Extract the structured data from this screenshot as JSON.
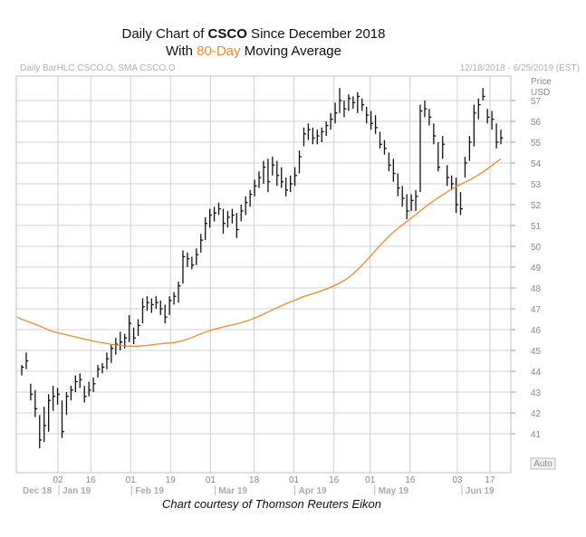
{
  "title": {
    "line1_prefix": "Daily Chart of ",
    "line1_ticker": "CSCO",
    "line1_suffix": " Since December 2018",
    "line2_prefix": "With ",
    "line2_highlight": "80-Day",
    "line2_suffix": " Moving Average",
    "highlight_color": "#f08a2b"
  },
  "caption": "Chart courtesy of Thomson Reuters Eikon",
  "chart_data": {
    "type": "line",
    "header_left": "Daily BarHLC CSCO.O, SMA CSCO.O",
    "header_right": "12/18/2018 - 6/25/2019 (EST)",
    "ylabel": "Price",
    "yunit": "USD",
    "auto_label": "Auto",
    "ylim": [
      40,
      58
    ],
    "yticks": [
      41,
      42,
      43,
      44,
      45,
      46,
      47,
      48,
      49,
      50,
      51,
      52,
      53,
      54,
      55,
      56,
      57
    ],
    "day_labels": [
      "02",
      "16",
      "01",
      "19",
      "01",
      "18",
      "01",
      "16",
      "01",
      "16",
      "03",
      "17"
    ],
    "month_labels": [
      "Dec 18",
      "Jan 19",
      "Feb 19",
      "Mar 19",
      "Apr 19",
      "May 19",
      "Jun 19"
    ],
    "grid": true,
    "colors": {
      "bars": "#111111",
      "sma": "#f08a2b",
      "grid": "#d0d0d0"
    },
    "series": [
      {
        "name": "BarHLC CSCO.O",
        "style": "hlc-bars",
        "values": [
          [
            43.8,
            44.3,
            44.2
          ],
          [
            44.1,
            44.9,
            44.5
          ],
          [
            42.6,
            43.4,
            42.9
          ],
          [
            41.8,
            43.1,
            42.2
          ],
          [
            40.3,
            41.9,
            40.7
          ],
          [
            40.6,
            42.3,
            41.4
          ],
          [
            41.1,
            42.9,
            42.6
          ],
          [
            42.1,
            43.3,
            42.8
          ],
          [
            42.4,
            43.2,
            42.9
          ],
          [
            40.8,
            42.6,
            41.1
          ],
          [
            41.9,
            43.0,
            42.8
          ],
          [
            42.6,
            43.3,
            43.1
          ],
          [
            43.0,
            43.8,
            43.5
          ],
          [
            43.2,
            43.9,
            43.6
          ],
          [
            42.5,
            43.3,
            42.8
          ],
          [
            42.8,
            43.5,
            43.1
          ],
          [
            43.0,
            43.7,
            43.4
          ],
          [
            43.7,
            44.3,
            44.1
          ],
          [
            43.9,
            44.4,
            44.2
          ],
          [
            44.1,
            44.9,
            44.6
          ],
          [
            44.4,
            45.3,
            45.1
          ],
          [
            44.8,
            45.6,
            45.3
          ],
          [
            45.0,
            45.9,
            45.4
          ],
          [
            45.1,
            45.8,
            45.6
          ],
          [
            45.4,
            46.7,
            46.3
          ],
          [
            45.3,
            46.1,
            45.6
          ],
          [
            45.7,
            46.5,
            46.2
          ],
          [
            46.3,
            47.5,
            47.1
          ],
          [
            46.9,
            47.6,
            47.3
          ],
          [
            46.8,
            47.5,
            47.2
          ],
          [
            47.0,
            47.6,
            47.3
          ],
          [
            46.7,
            47.4,
            47.0
          ],
          [
            46.3,
            47.2,
            46.6
          ],
          [
            46.7,
            47.6,
            47.4
          ],
          [
            47.2,
            47.8,
            47.6
          ],
          [
            47.3,
            48.3,
            48.1
          ],
          [
            48.2,
            49.8,
            49.5
          ],
          [
            49.0,
            49.7,
            49.4
          ],
          [
            48.9,
            49.5,
            49.1
          ],
          [
            49.1,
            49.9,
            49.6
          ],
          [
            49.7,
            50.6,
            50.3
          ],
          [
            50.3,
            51.4,
            51.1
          ],
          [
            50.9,
            51.8,
            51.5
          ],
          [
            51.2,
            51.9,
            51.6
          ],
          [
            51.5,
            52.1,
            51.8
          ],
          [
            50.6,
            51.8,
            51.1
          ],
          [
            50.9,
            51.7,
            51.4
          ],
          [
            51.1,
            51.8,
            51.5
          ],
          [
            50.4,
            51.6,
            50.8
          ],
          [
            51.2,
            52.0,
            51.7
          ],
          [
            51.5,
            52.4,
            52.1
          ],
          [
            51.9,
            52.7,
            52.5
          ],
          [
            52.4,
            53.2,
            52.9
          ],
          [
            52.8,
            53.6,
            53.3
          ],
          [
            53.0,
            54.1,
            53.8
          ],
          [
            52.6,
            54.2,
            53.1
          ],
          [
            53.4,
            54.3,
            53.9
          ],
          [
            52.9,
            54.1,
            53.4
          ],
          [
            52.8,
            53.8,
            53.1
          ],
          [
            52.4,
            53.3,
            52.7
          ],
          [
            52.6,
            53.4,
            53.0
          ],
          [
            52.9,
            53.8,
            53.4
          ],
          [
            53.5,
            54.6,
            54.3
          ],
          [
            54.8,
            55.7,
            55.4
          ],
          [
            55.1,
            55.9,
            55.6
          ],
          [
            54.9,
            55.7,
            55.2
          ],
          [
            54.9,
            55.6,
            55.3
          ],
          [
            55.0,
            55.7,
            55.5
          ],
          [
            55.3,
            56.0,
            55.8
          ],
          [
            55.6,
            56.4,
            56.1
          ],
          [
            55.9,
            56.9,
            56.4
          ],
          [
            56.4,
            57.6,
            57.0
          ],
          [
            56.2,
            57.0,
            56.6
          ],
          [
            56.5,
            57.3,
            57.1
          ],
          [
            56.6,
            57.2,
            56.9
          ],
          [
            56.4,
            57.4,
            57.2
          ],
          [
            56.5,
            57.1,
            56.8
          ],
          [
            55.9,
            56.7,
            56.3
          ],
          [
            55.6,
            56.5,
            55.9
          ],
          [
            55.4,
            56.3,
            55.7
          ],
          [
            54.7,
            55.5,
            54.9
          ],
          [
            54.4,
            55.1,
            54.7
          ],
          [
            53.6,
            54.5,
            53.9
          ],
          [
            53.1,
            54.2,
            53.5
          ],
          [
            52.4,
            53.5,
            52.8
          ],
          [
            51.9,
            52.9,
            52.3
          ],
          [
            51.3,
            52.5,
            51.7
          ],
          [
            51.7,
            52.5,
            52.2
          ],
          [
            51.7,
            52.7,
            52.4
          ],
          [
            52.6,
            56.8,
            56.5
          ],
          [
            56.2,
            57.0,
            56.6
          ],
          [
            55.8,
            56.6,
            56.2
          ],
          [
            54.9,
            55.9,
            55.3
          ],
          [
            53.6,
            55.0,
            53.8
          ],
          [
            54.2,
            55.3,
            54.9
          ],
          [
            52.9,
            53.9,
            53.3
          ],
          [
            52.7,
            53.4,
            53.0
          ],
          [
            51.6,
            53.3,
            52.0
          ],
          [
            51.5,
            52.6,
            51.8
          ],
          [
            53.3,
            54.3,
            54.0
          ],
          [
            54.1,
            55.3,
            55.0
          ],
          [
            54.8,
            56.8,
            56.4
          ],
          [
            56.1,
            57.1,
            56.8
          ],
          [
            57.0,
            57.6,
            57.2
          ],
          [
            55.9,
            56.6,
            56.2
          ],
          [
            55.6,
            56.5,
            56.1
          ],
          [
            54.7,
            55.9,
            55.0
          ],
          [
            54.9,
            55.6,
            55.2
          ]
        ]
      },
      {
        "name": "SMA CSCO.O",
        "style": "line",
        "values": [
          46.6,
          46.5,
          46.42,
          46.34,
          46.26,
          46.17,
          46.08,
          45.99,
          45.9,
          45.85,
          45.8,
          45.75,
          45.7,
          45.65,
          45.6,
          45.55,
          45.5,
          45.45,
          45.41,
          45.37,
          45.33,
          45.29,
          45.26,
          45.24,
          45.22,
          45.21,
          45.2,
          45.21,
          45.22,
          45.24,
          45.27,
          45.3,
          45.32,
          45.34,
          45.36,
          45.38,
          45.42,
          45.47,
          45.54,
          45.62,
          45.71,
          45.8,
          45.88,
          45.95,
          46.02,
          46.08,
          46.13,
          46.18,
          46.23,
          46.28,
          46.33,
          46.4,
          46.47,
          46.56,
          46.65,
          46.75,
          46.85,
          46.95,
          47.05,
          47.15,
          47.24,
          47.33,
          47.41,
          47.5,
          47.59,
          47.66,
          47.72,
          47.79,
          47.87,
          47.95,
          48.04,
          48.13,
          48.24,
          48.36,
          48.5,
          48.68,
          48.88,
          49.09,
          49.32,
          49.55,
          49.8,
          50.04,
          50.27,
          50.48,
          50.68,
          50.86,
          51.03,
          51.19,
          51.35,
          51.52,
          51.7,
          51.87,
          52.03,
          52.18,
          52.33,
          52.47,
          52.61,
          52.74,
          52.87,
          52.98,
          53.08,
          53.18,
          53.3,
          53.43,
          53.57,
          53.72,
          53.88,
          54.05,
          54.2
        ]
      }
    ]
  }
}
